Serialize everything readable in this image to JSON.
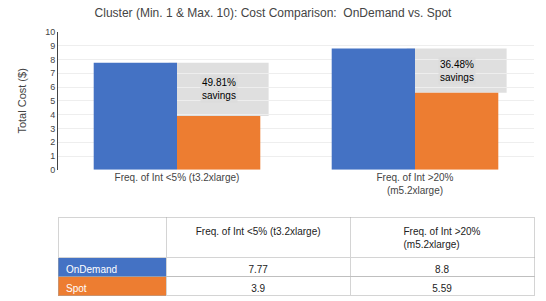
{
  "chart_data": {
    "type": "bar",
    "title": "Cluster (Min. 1 & Max. 10): Cost Comparison:  OnDemand vs. Spot",
    "ylabel": "Total Cost ($)",
    "categories": [
      "Freq. of Int <5% (t3.2xlarge)",
      "Freq. of Int >20%\n(m5.2xlarge)"
    ],
    "series": [
      {
        "name": "OnDemand",
        "color": "#4472C4",
        "values": [
          7.77,
          8.8
        ]
      },
      {
        "name": "Spot",
        "color": "#ED7D31",
        "values": [
          3.9,
          5.59
        ]
      }
    ],
    "annotations": [
      "49.81%\nsavings",
      "36.48%\nsavings"
    ],
    "ylim": [
      0,
      10
    ],
    "yticks": [
      0,
      1,
      2,
      3,
      4,
      5,
      6,
      7,
      8,
      9,
      10
    ],
    "grid": true
  }
}
